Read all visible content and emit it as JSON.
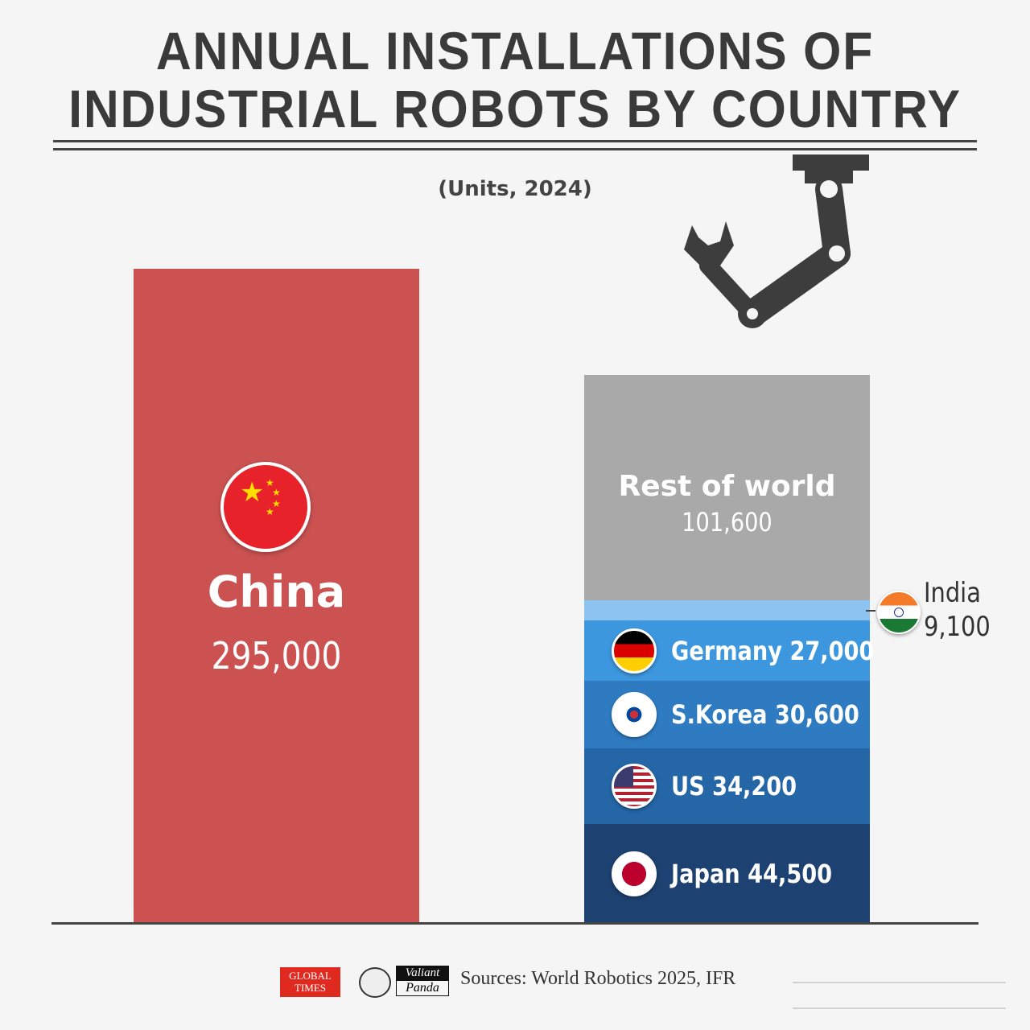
{
  "title_line1": "ANNUAL INSTALLATIONS OF",
  "title_line2": "INDUSTRIAL ROBOTS BY COUNTRY",
  "subtitle": "(Units, 2024)",
  "chart_data": {
    "type": "bar",
    "title": "Annual installations of industrial robots by country",
    "subtitle": "(Units, 2024)",
    "unit": "Units",
    "ylim": [
      0,
      295000
    ],
    "grid": false,
    "bars": [
      {
        "name": "China",
        "label": "China",
        "value": 295000,
        "value_label": "295,000",
        "color": "#cc5252"
      },
      {
        "name": "Rest of world (stacked)",
        "segments": [
          {
            "name": "Japan",
            "label": "Japan 44,500",
            "value": 44500,
            "color": "#1d4170"
          },
          {
            "name": "US",
            "label": "US 34,200",
            "value": 34200,
            "color": "#2566a6"
          },
          {
            "name": "S.Korea",
            "label": "S.Korea 30,600",
            "value": 30600,
            "color": "#2f7bc2"
          },
          {
            "name": "Germany",
            "label": "Germany 27,000",
            "value": 27000,
            "color": "#3d97de"
          },
          {
            "name": "India",
            "label": "India",
            "value_label": "9,100",
            "value": 9100,
            "color": "#8cc3f0"
          },
          {
            "name": "Rest of world",
            "label": "Rest of world",
            "value_label": "101,600",
            "value": 101600,
            "color": "#a9a9a9"
          }
        ]
      }
    ]
  },
  "footer": {
    "logo1": "GLOBAL TIMES",
    "logo2": "Valiant Panda",
    "source": "Sources: World Robotics 2025, IFR"
  }
}
